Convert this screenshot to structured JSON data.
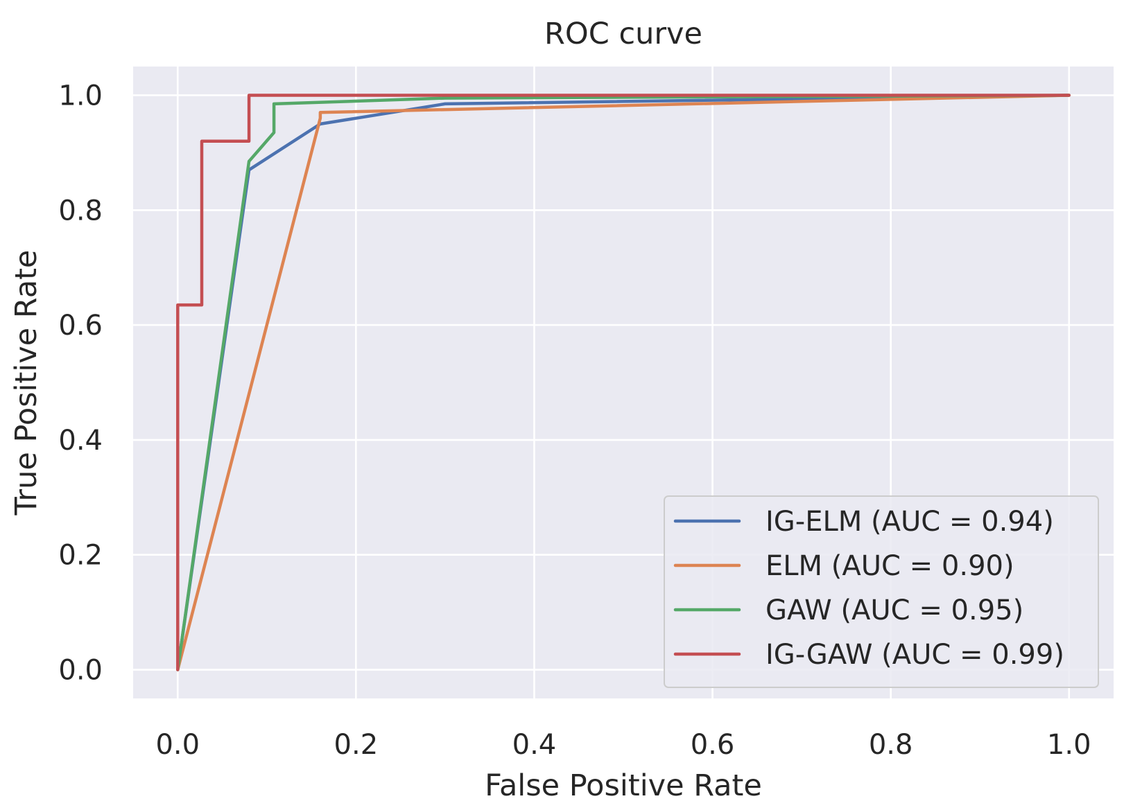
{
  "chart_data": {
    "type": "line",
    "title": "ROC curve",
    "xlabel": "False Positive Rate",
    "ylabel": "True Positive Rate",
    "xlim": [
      -0.05,
      1.05
    ],
    "ylim": [
      -0.05,
      1.05
    ],
    "grid": true,
    "legend_position": "lower-right",
    "xticks": [
      0.0,
      0.2,
      0.4,
      0.6,
      0.8,
      1.0
    ],
    "xtick_labels": [
      "0.0",
      "0.2",
      "0.4",
      "0.6",
      "0.8",
      "1.0"
    ],
    "yticks": [
      0.0,
      0.2,
      0.4,
      0.6,
      0.8,
      1.0
    ],
    "ytick_labels": [
      "0.0",
      "0.2",
      "0.4",
      "0.6",
      "0.8",
      "1.0"
    ],
    "series": [
      {
        "name": "IG-ELM (AUC = 0.94)",
        "color": "#4c72b0",
        "x": [
          0.0,
          0.08,
          0.16,
          0.3,
          1.0
        ],
        "y": [
          0.0,
          0.87,
          0.95,
          0.985,
          1.0
        ]
      },
      {
        "name": "ELM (AUC = 0.90)",
        "color": "#dd8452",
        "x": [
          0.0,
          0.16,
          0.16,
          1.0
        ],
        "y": [
          0.0,
          0.96,
          0.97,
          1.0
        ]
      },
      {
        "name": "GAW (AUC = 0.95)",
        "color": "#55a868",
        "x": [
          0.0,
          0.08,
          0.108,
          0.108,
          0.3,
          1.0
        ],
        "y": [
          0.0,
          0.885,
          0.935,
          0.985,
          0.995,
          1.0
        ]
      },
      {
        "name": "IG-GAW (AUC = 0.99)",
        "color": "#c44e52",
        "x": [
          0.0,
          0.0,
          0.027,
          0.027,
          0.08,
          0.08,
          1.0
        ],
        "y": [
          0.0,
          0.635,
          0.635,
          0.92,
          0.92,
          1.0,
          1.0
        ]
      }
    ]
  }
}
